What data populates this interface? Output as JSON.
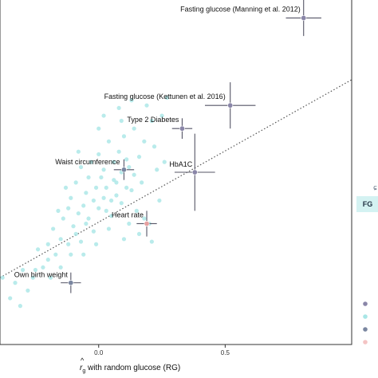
{
  "chart_data": {
    "type": "scatter",
    "xlabel_hat": "^",
    "xlabel_r": "r",
    "xlabel_sub": "g",
    "xlabel_rest": " with random glucose (RG)",
    "xticks": [
      0.0,
      0.5
    ],
    "xtick_labels": [
      "0.0",
      "0.5"
    ],
    "xlim": [
      -0.39,
      1.0
    ],
    "ylim": [
      -0.59,
      0.75
    ],
    "reference_line": {
      "style": "dotted",
      "color": "#555555",
      "points": [
        [
          -0.39,
          -0.33
        ],
        [
          1.0,
          0.44
        ]
      ]
    },
    "background_points": {
      "color": "#a8e6e6",
      "points": [
        [
          -0.3,
          -0.3
        ],
        [
          -0.26,
          -0.33
        ],
        [
          -0.22,
          -0.29
        ],
        [
          -0.33,
          -0.35
        ],
        [
          -0.28,
          -0.38
        ],
        [
          -0.2,
          -0.2
        ],
        [
          -0.17,
          -0.24
        ],
        [
          -0.15,
          -0.18
        ],
        [
          -0.12,
          -0.2
        ],
        [
          -0.18,
          -0.14
        ],
        [
          -0.14,
          -0.1
        ],
        [
          -0.1,
          -0.13
        ],
        [
          -0.08,
          -0.08
        ],
        [
          -0.12,
          -0.06
        ],
        [
          -0.06,
          -0.05
        ],
        [
          -0.04,
          -0.1
        ],
        [
          -0.02,
          -0.03
        ],
        [
          0.0,
          -0.06
        ],
        [
          0.02,
          -0.02
        ],
        [
          -0.05,
          0.0
        ],
        [
          0.03,
          0.02
        ],
        [
          0.05,
          -0.03
        ],
        [
          0.07,
          0.04
        ],
        [
          0.01,
          0.06
        ],
        [
          0.09,
          0.08
        ],
        [
          0.11,
          0.02
        ],
        [
          0.12,
          0.1
        ],
        [
          0.06,
          0.12
        ],
        [
          0.14,
          0.07
        ],
        [
          0.16,
          0.14
        ],
        [
          -0.09,
          0.04
        ],
        [
          -0.07,
          0.1
        ],
        [
          -0.03,
          0.12
        ],
        [
          0.0,
          0.15
        ],
        [
          0.04,
          0.2
        ],
        [
          0.08,
          0.16
        ],
        [
          0.1,
          0.22
        ],
        [
          0.14,
          0.25
        ],
        [
          0.18,
          0.2
        ],
        [
          0.21,
          0.28
        ],
        [
          0.25,
          0.3
        ],
        [
          0.22,
          0.18
        ],
        [
          0.19,
          0.34
        ],
        [
          -0.11,
          -0.02
        ],
        [
          -0.16,
          -0.07
        ],
        [
          -0.13,
          0.02
        ],
        [
          -0.01,
          0.02
        ],
        [
          0.03,
          -0.07
        ],
        [
          0.07,
          -0.01
        ],
        [
          0.13,
          0.01
        ],
        [
          -0.2,
          -0.26
        ],
        [
          -0.24,
          -0.22
        ],
        [
          -0.09,
          -0.16
        ],
        [
          -0.05,
          -0.12
        ],
        [
          0.09,
          -0.04
        ],
        [
          0.15,
          -0.07
        ],
        [
          0.18,
          -0.1
        ],
        [
          0.2,
          -0.12
        ],
        [
          -0.02,
          -0.15
        ],
        [
          0.05,
          -0.09
        ],
        [
          -0.07,
          -0.19
        ],
        [
          -0.11,
          -0.24
        ],
        [
          -0.25,
          -0.3
        ],
        [
          -0.35,
          -0.41
        ],
        [
          -0.31,
          -0.44
        ],
        [
          -0.38,
          -0.33
        ],
        [
          0.02,
          0.09
        ],
        [
          0.06,
          0.05
        ],
        [
          -0.04,
          0.06
        ],
        [
          0.11,
          0.13
        ],
        [
          0.17,
          0.04
        ],
        [
          0.23,
          0.09
        ],
        [
          0.26,
          0.12
        ],
        [
          0.12,
          -0.12
        ],
        [
          0.16,
          -0.16
        ],
        [
          0.21,
          -0.19
        ],
        [
          -0.15,
          -0.29
        ],
        [
          -0.19,
          -0.33
        ],
        [
          0.0,
          0.25
        ],
        [
          0.02,
          0.3
        ],
        [
          0.09,
          0.28
        ],
        [
          0.08,
          0.33
        ],
        [
          0.13,
          0.36
        ],
        [
          0.27,
          0.37
        ],
        [
          -0.08,
          0.16
        ],
        [
          -0.06,
          -0.24
        ],
        [
          -0.01,
          -0.2
        ],
        [
          0.04,
          -0.14
        ],
        [
          0.1,
          -0.18
        ],
        [
          0.24,
          -0.03
        ]
      ]
    },
    "points": [
      {
        "label": "Fasting glucose (Manning et al. 2012)",
        "x": 0.81,
        "y": 0.68,
        "xerr": 0.07,
        "yerr": 0.07,
        "color": "#8a86a8"
      },
      {
        "label": "Fasting glucose (Kettunen et al. 2016)",
        "x": 0.52,
        "y": 0.34,
        "xerr": 0.1,
        "yerr": 0.09,
        "color": "#8a86a8"
      },
      {
        "label": "Type 2 Diabetes",
        "x": 0.33,
        "y": 0.25,
        "xerr": 0.04,
        "yerr": 0.04,
        "color": "#8a86a8"
      },
      {
        "label": "HbA1C",
        "x": 0.38,
        "y": 0.08,
        "xerr": 0.08,
        "yerr": 0.15,
        "color": "#8a86a8"
      },
      {
        "label": "Waist circumference",
        "x": 0.1,
        "y": 0.09,
        "xerr": 0.04,
        "yerr": 0.04,
        "color": "#7a86a0"
      },
      {
        "label": "Heart rate",
        "x": 0.19,
        "y": -0.12,
        "xerr": 0.04,
        "yerr": 0.05,
        "color": "#e6a0a0"
      },
      {
        "label": "Own birth weight",
        "x": -0.11,
        "y": -0.35,
        "xerr": 0.04,
        "yerr": 0.04,
        "color": "#7a86a0"
      }
    ],
    "legend_fragment": "FG",
    "legend_fragment_bg": "#d4f2f2",
    "legend_dot_colors": [
      "#8a86a8",
      "#a8e6e6",
      "#7a86a0",
      "#f4c4c4"
    ]
  }
}
